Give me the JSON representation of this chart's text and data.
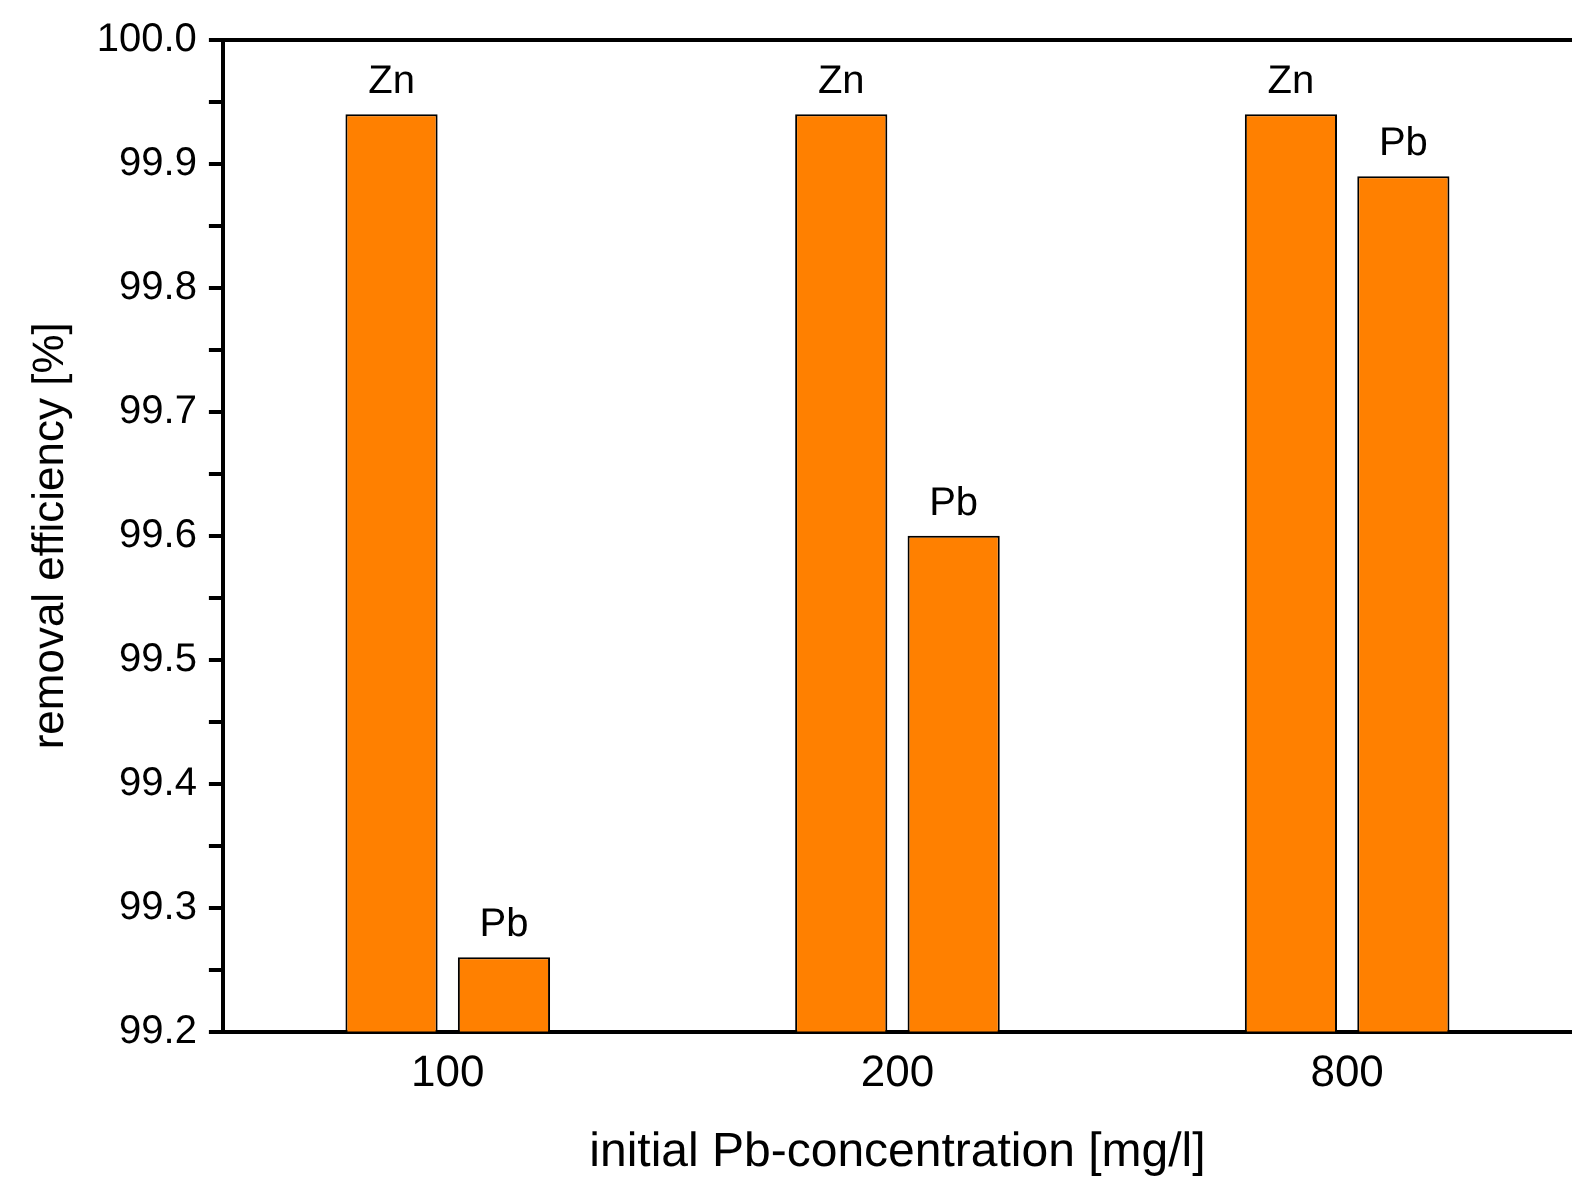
{
  "chart_data": {
    "type": "bar",
    "xlabel": "initial Pb-concentration [mg/l]",
    "ylabel": "removal efficiency [%]",
    "categories": [
      "100",
      "200",
      "800"
    ],
    "series": [
      {
        "name": "Zn",
        "color": "#ff8000",
        "values": [
          99.94,
          99.94,
          99.94
        ]
      },
      {
        "name": "Pb",
        "color": "#ff8000",
        "values": [
          99.26,
          99.6,
          99.89
        ]
      }
    ],
    "ylim": [
      99.2,
      100.0
    ],
    "yticks": [
      {
        "value": 99.2,
        "label": "99.2"
      },
      {
        "value": 99.25,
        "label": null
      },
      {
        "value": 99.3,
        "label": "99.3"
      },
      {
        "value": 99.35,
        "label": null
      },
      {
        "value": 99.4,
        "label": "99.4"
      },
      {
        "value": 99.45,
        "label": null
      },
      {
        "value": 99.5,
        "label": "99.5"
      },
      {
        "value": 99.55,
        "label": null
      },
      {
        "value": 99.6,
        "label": "99.6"
      },
      {
        "value": 99.65,
        "label": null
      },
      {
        "value": 99.7,
        "label": "99.7"
      },
      {
        "value": 99.75,
        "label": null
      },
      {
        "value": 99.8,
        "label": "99.8"
      },
      {
        "value": 99.85,
        "label": null
      },
      {
        "value": 99.9,
        "label": "99.9"
      },
      {
        "value": 99.95,
        "label": null
      },
      {
        "value": 100.0,
        "label": "100.0"
      }
    ],
    "grid": false,
    "legend": false
  }
}
